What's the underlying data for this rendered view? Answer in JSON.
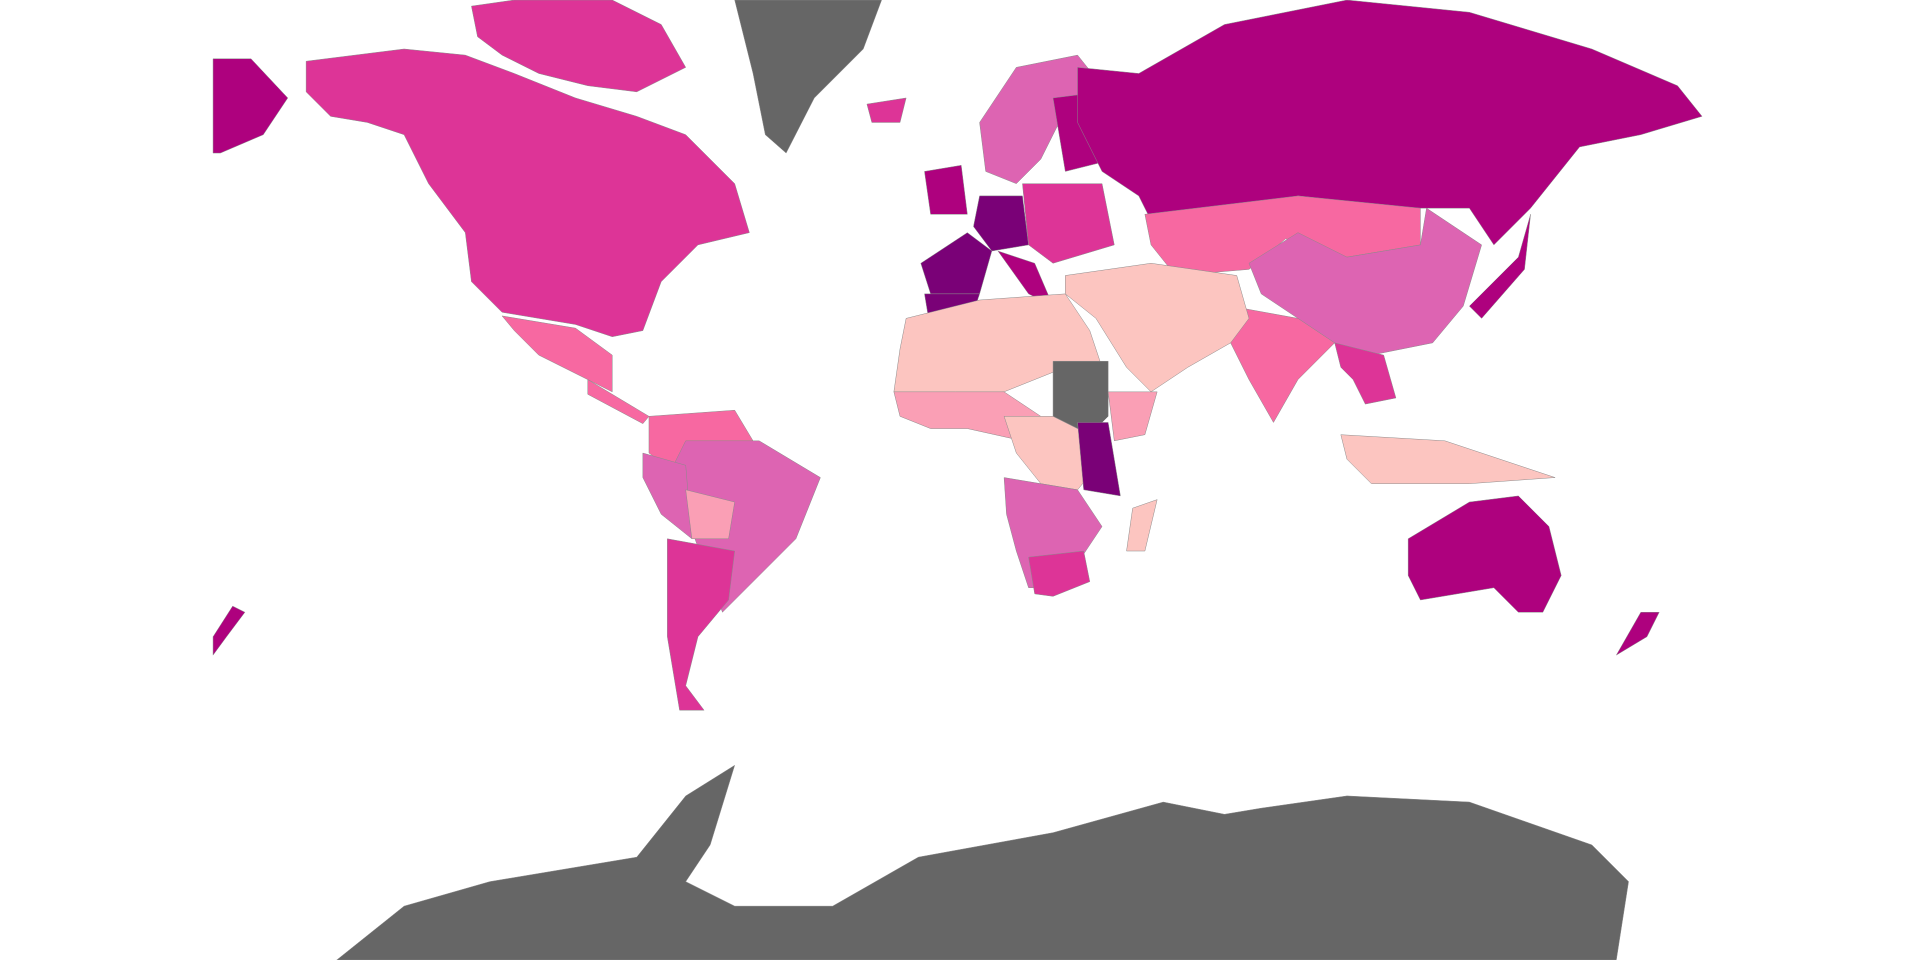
{
  "map": {
    "class_colors": [
      "#fcc5c0",
      "#fa9fb5",
      "#f768a1",
      "#dd64b2",
      "#dd3497",
      "#ae017e",
      "#7a0177"
    ],
    "no_data_color": "#666666"
  }
}
